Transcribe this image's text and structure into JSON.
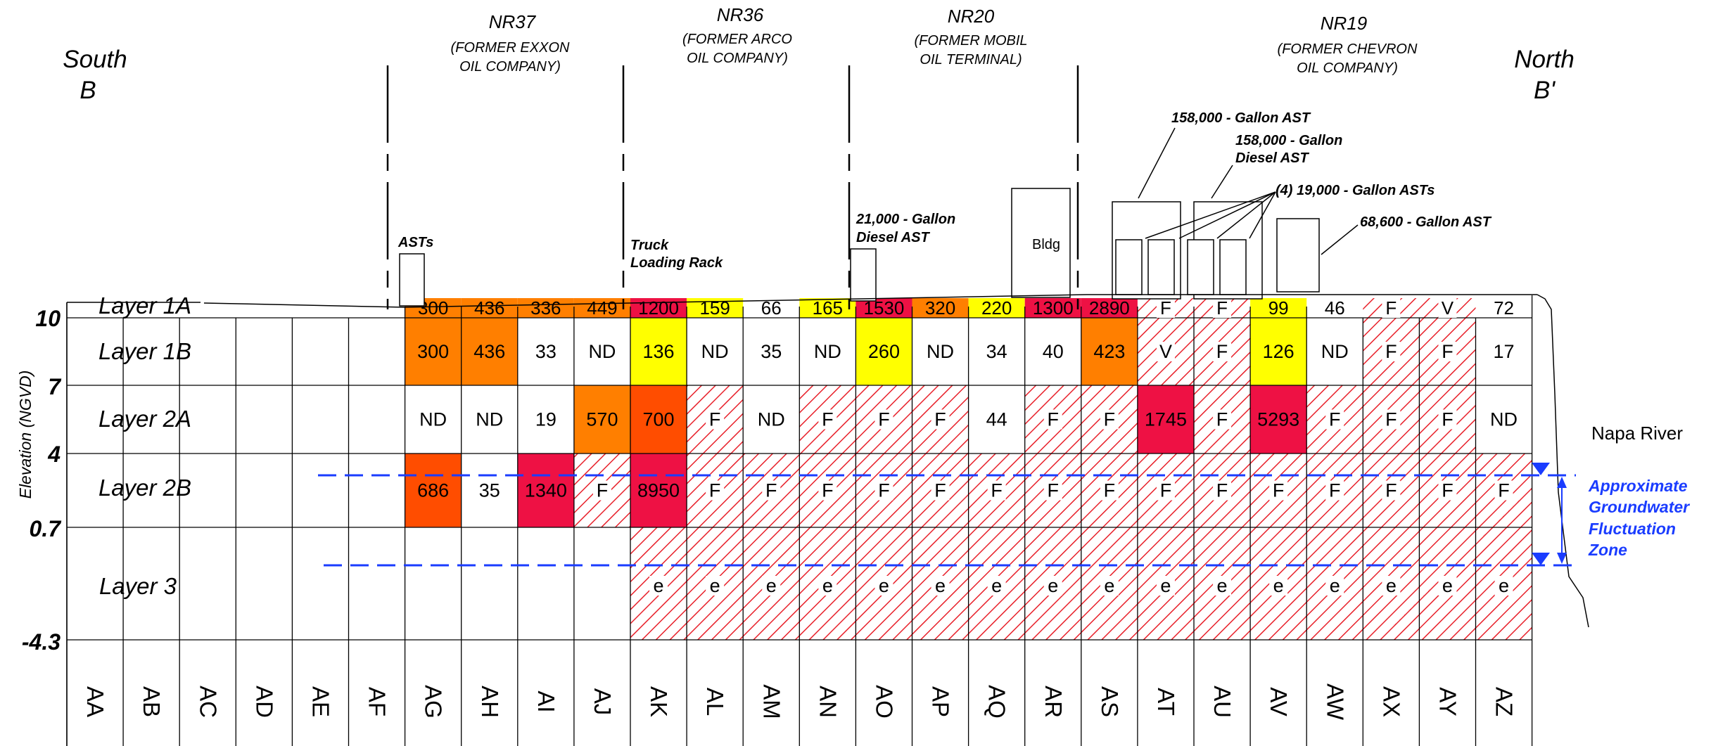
{
  "ends": {
    "south": {
      "word": "South",
      "letter": "B"
    },
    "north": {
      "word": "North",
      "letter": "B'"
    }
  },
  "facilities": [
    {
      "code": "NR37",
      "name": [
        "(FORMER EXXON",
        "OIL COMPANY)"
      ]
    },
    {
      "code": "NR36",
      "name": [
        "(FORMER ARCO",
        "OIL COMPANY)"
      ]
    },
    {
      "code": "NR20",
      "name": [
        "(FORMER MOBIL",
        "OIL TERMINAL)"
      ]
    },
    {
      "code": "NR19",
      "name": [
        "(FORMER CHEVRON",
        "OIL COMPANY)"
      ]
    }
  ],
  "structures": {
    "asts": "ASTs",
    "truck_rack": [
      "Truck",
      "Loading Rack"
    ],
    "diesel_21000": [
      "21,000 - Gallon",
      "Diesel AST"
    ],
    "bldg": "Bldg",
    "ast_158000": "158,000 - Gallon AST",
    "diesel_158000": [
      "158,000 - Gallon",
      "Diesel AST"
    ],
    "ast_19000": "(4) 19,000 - Gallon ASTs",
    "ast_68600": "68,600 - Gallon AST"
  },
  "axis": {
    "label": "Elevation (NGVD)",
    "ticks": [
      "10",
      "7",
      "4",
      "0.7",
      "-4.3"
    ]
  },
  "layers": [
    "Layer 1A",
    "Layer 1B",
    "Layer 2A",
    "Layer 2B",
    "Layer 3"
  ],
  "columns": [
    "AA",
    "AB",
    "AC",
    "AD",
    "AE",
    "AF",
    "AG",
    "AH",
    "AI",
    "AJ",
    "AK",
    "AL",
    "AM",
    "AN",
    "AO",
    "AP",
    "AQ",
    "AR",
    "AS",
    "AT",
    "AU",
    "AV",
    "AW",
    "AX",
    "AY",
    "AZ"
  ],
  "colors": {
    "yellow": "#ffff00",
    "orange": "#ff7f00",
    "red_orange": "#ff4d00",
    "red": "#ee1144",
    "hatch": "#e8202a",
    "water": "#1a3cff"
  },
  "cells": {
    "layer_1a": [
      {
        "col": "AG",
        "text": "300",
        "fill": "orange"
      },
      {
        "col": "AH",
        "text": "436",
        "fill": "orange"
      },
      {
        "col": "AI",
        "text": "336",
        "fill": "orange"
      },
      {
        "col": "AJ",
        "text": "449",
        "fill": "orange"
      },
      {
        "col": "AK",
        "text": "1200",
        "fill": "red"
      },
      {
        "col": "AL",
        "text": "159",
        "fill": "yellow"
      },
      {
        "col": "AM",
        "text": "66",
        "fill": "none"
      },
      {
        "col": "AN",
        "text": "165",
        "fill": "yellow"
      },
      {
        "col": "AO",
        "text": "1530",
        "fill": "red"
      },
      {
        "col": "AP",
        "text": "320",
        "fill": "orange"
      },
      {
        "col": "AQ",
        "text": "220",
        "fill": "yellow"
      },
      {
        "col": "AR",
        "text": "1300",
        "fill": "red"
      },
      {
        "col": "AS",
        "text": "2890",
        "fill": "red"
      },
      {
        "col": "AT",
        "text": "F",
        "fill": "hatch"
      },
      {
        "col": "AU",
        "text": "F",
        "fill": "hatch"
      },
      {
        "col": "AV",
        "text": "99",
        "fill": "yellow"
      },
      {
        "col": "AW",
        "text": "46",
        "fill": "none"
      },
      {
        "col": "AX",
        "text": "F",
        "fill": "hatch"
      },
      {
        "col": "AY",
        "text": "V",
        "fill": "hatch"
      },
      {
        "col": "AZ",
        "text": "72",
        "fill": "none"
      }
    ],
    "layer_1b": [
      {
        "col": "AG",
        "text": "300",
        "fill": "orange"
      },
      {
        "col": "AH",
        "text": "436",
        "fill": "orange"
      },
      {
        "col": "AI",
        "text": "33",
        "fill": "none"
      },
      {
        "col": "AJ",
        "text": "ND",
        "fill": "none"
      },
      {
        "col": "AK",
        "text": "136",
        "fill": "yellow"
      },
      {
        "col": "AL",
        "text": "ND",
        "fill": "none"
      },
      {
        "col": "AM",
        "text": "35",
        "fill": "none"
      },
      {
        "col": "AN",
        "text": "ND",
        "fill": "none"
      },
      {
        "col": "AO",
        "text": "260",
        "fill": "yellow"
      },
      {
        "col": "AP",
        "text": "ND",
        "fill": "none"
      },
      {
        "col": "AQ",
        "text": "34",
        "fill": "none"
      },
      {
        "col": "AR",
        "text": "40",
        "fill": "none"
      },
      {
        "col": "AS",
        "text": "423",
        "fill": "orange"
      },
      {
        "col": "AT",
        "text": "V",
        "fill": "hatch"
      },
      {
        "col": "AU",
        "text": "F",
        "fill": "hatch"
      },
      {
        "col": "AV",
        "text": "126",
        "fill": "yellow"
      },
      {
        "col": "AW",
        "text": "ND",
        "fill": "none"
      },
      {
        "col": "AX",
        "text": "F",
        "fill": "hatch"
      },
      {
        "col": "AY",
        "text": "F",
        "fill": "hatch"
      },
      {
        "col": "AZ",
        "text": "17",
        "fill": "none"
      }
    ],
    "layer_2a": [
      {
        "col": "AG",
        "text": "ND",
        "fill": "none"
      },
      {
        "col": "AH",
        "text": "ND",
        "fill": "none"
      },
      {
        "col": "AI",
        "text": "19",
        "fill": "none"
      },
      {
        "col": "AJ",
        "text": "570",
        "fill": "orange"
      },
      {
        "col": "AK",
        "text": "700",
        "fill": "red_orange"
      },
      {
        "col": "AL",
        "text": "F",
        "fill": "hatch"
      },
      {
        "col": "AM",
        "text": "ND",
        "fill": "none"
      },
      {
        "col": "AN",
        "text": "F",
        "fill": "hatch"
      },
      {
        "col": "AO",
        "text": "F",
        "fill": "hatch"
      },
      {
        "col": "AP",
        "text": "F",
        "fill": "hatch"
      },
      {
        "col": "AQ",
        "text": "44",
        "fill": "none"
      },
      {
        "col": "AR",
        "text": "F",
        "fill": "hatch"
      },
      {
        "col": "AS",
        "text": "F",
        "fill": "hatch"
      },
      {
        "col": "AT",
        "text": "1745",
        "fill": "red"
      },
      {
        "col": "AU",
        "text": "F",
        "fill": "hatch"
      },
      {
        "col": "AV",
        "text": "5293",
        "fill": "red"
      },
      {
        "col": "AW",
        "text": "F",
        "fill": "hatch"
      },
      {
        "col": "AX",
        "text": "F",
        "fill": "hatch"
      },
      {
        "col": "AY",
        "text": "F",
        "fill": "hatch"
      },
      {
        "col": "AZ",
        "text": "ND",
        "fill": "none"
      }
    ],
    "layer_2b": [
      {
        "col": "AG",
        "text": "686",
        "fill": "red_orange"
      },
      {
        "col": "AH",
        "text": "35",
        "fill": "none"
      },
      {
        "col": "AI",
        "text": "1340",
        "fill": "red"
      },
      {
        "col": "AJ",
        "text": "F",
        "fill": "hatch"
      },
      {
        "col": "AK",
        "text": "8950",
        "fill": "red"
      },
      {
        "col": "AL",
        "text": "F",
        "fill": "hatch"
      },
      {
        "col": "AM",
        "text": "F",
        "fill": "hatch"
      },
      {
        "col": "AN",
        "text": "F",
        "fill": "hatch"
      },
      {
        "col": "AO",
        "text": "F",
        "fill": "hatch"
      },
      {
        "col": "AP",
        "text": "F",
        "fill": "hatch"
      },
      {
        "col": "AQ",
        "text": "F",
        "fill": "hatch"
      },
      {
        "col": "AR",
        "text": "F",
        "fill": "hatch"
      },
      {
        "col": "AS",
        "text": "F",
        "fill": "hatch"
      },
      {
        "col": "AT",
        "text": "F",
        "fill": "hatch"
      },
      {
        "col": "AU",
        "text": "F",
        "fill": "hatch"
      },
      {
        "col": "AV",
        "text": "F",
        "fill": "hatch"
      },
      {
        "col": "AW",
        "text": "F",
        "fill": "hatch"
      },
      {
        "col": "AX",
        "text": "F",
        "fill": "hatch"
      },
      {
        "col": "AY",
        "text": "F",
        "fill": "hatch"
      },
      {
        "col": "AZ",
        "text": "F",
        "fill": "hatch"
      }
    ],
    "layer_3": [
      {
        "col": "AK",
        "text": "e",
        "fill": "hatch"
      },
      {
        "col": "AL",
        "text": "e",
        "fill": "hatch"
      },
      {
        "col": "AM",
        "text": "e",
        "fill": "hatch"
      },
      {
        "col": "AN",
        "text": "e",
        "fill": "hatch"
      },
      {
        "col": "AO",
        "text": "e",
        "fill": "hatch"
      },
      {
        "col": "AP",
        "text": "e",
        "fill": "hatch"
      },
      {
        "col": "AQ",
        "text": "e",
        "fill": "hatch"
      },
      {
        "col": "AR",
        "text": "e",
        "fill": "hatch"
      },
      {
        "col": "AS",
        "text": "e",
        "fill": "hatch"
      },
      {
        "col": "AT",
        "text": "e",
        "fill": "hatch"
      },
      {
        "col": "AU",
        "text": "e",
        "fill": "hatch"
      },
      {
        "col": "AV",
        "text": "e",
        "fill": "hatch"
      },
      {
        "col": "AW",
        "text": "e",
        "fill": "hatch"
      },
      {
        "col": "AX",
        "text": "e",
        "fill": "hatch"
      },
      {
        "col": "AY",
        "text": "e",
        "fill": "hatch"
      },
      {
        "col": "AZ",
        "text": "e",
        "fill": "hatch"
      }
    ]
  },
  "river": "Napa River",
  "groundwater": [
    "Approximate",
    "Groundwater",
    "Fluctuation",
    "Zone"
  ]
}
